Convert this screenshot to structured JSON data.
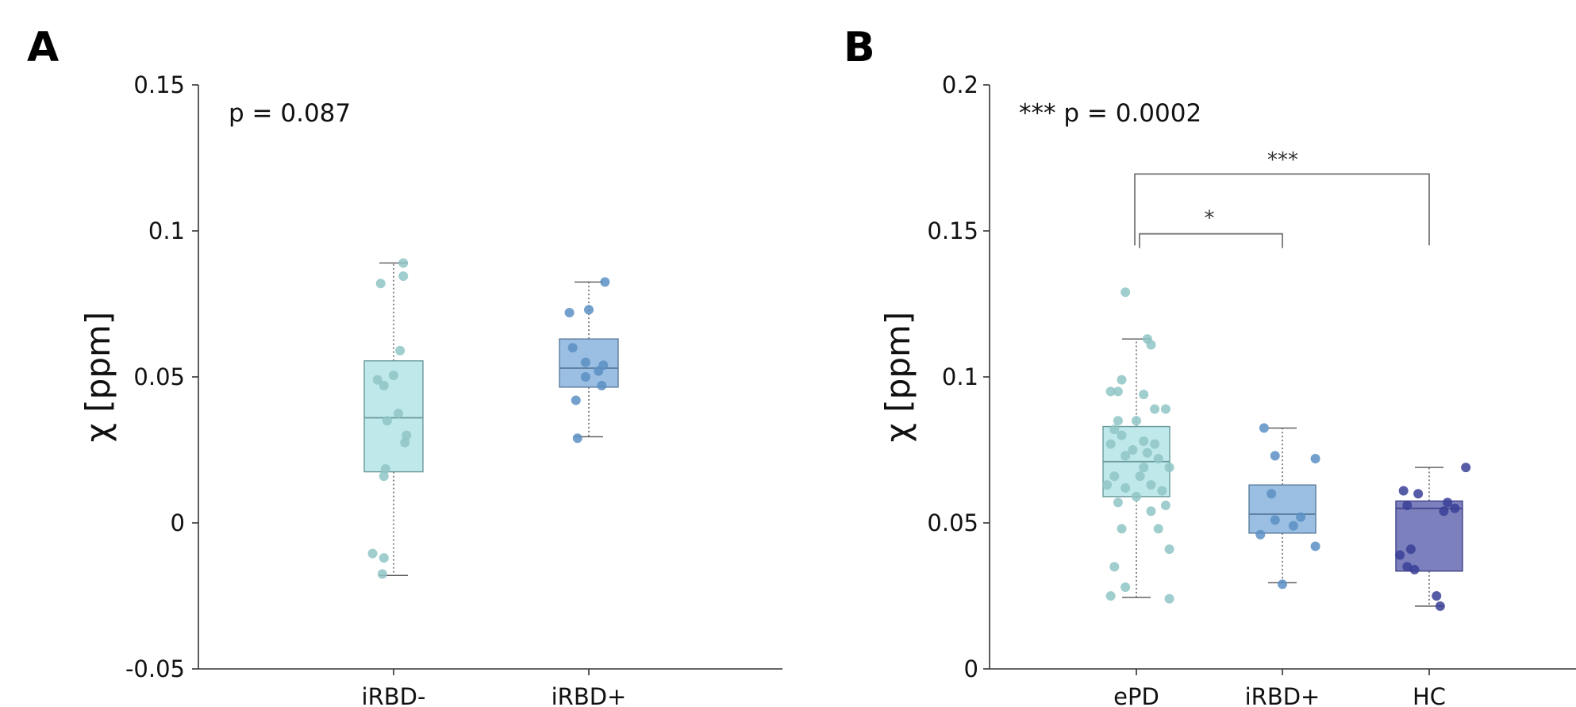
{
  "chart_data": [
    {
      "type": "box",
      "panel": "A",
      "ylabel": "χ [ppm]",
      "ylim": [
        -0.05,
        0.15
      ],
      "yticks": [
        -0.05,
        0,
        0.05,
        0.1,
        0.15
      ],
      "ytick_labels": [
        "-0.05",
        "0",
        "0.05",
        "0.1",
        "0.15"
      ],
      "annotation": "p = 0.087",
      "categories": [
        "iRBD-",
        "iRBD+"
      ],
      "boxes": [
        {
          "name": "iRBD-",
          "fill": "#bfe8ea",
          "edge": "#6a9a9c",
          "point": "#8fc4c6",
          "q1": 0.0175,
          "median": 0.036,
          "q3": 0.0555,
          "whisker_low": -0.018,
          "whisker_high": 0.089,
          "points": [
            [
              -0.04,
              0.082
            ],
            [
              0.03,
              0.089
            ],
            [
              0.03,
              0.0845
            ],
            [
              0.02,
              0.059
            ],
            [
              -0.05,
              0.049
            ],
            [
              -0.03,
              0.047
            ],
            [
              0.0,
              0.0505
            ],
            [
              0.015,
              0.0375
            ],
            [
              -0.02,
              0.035
            ],
            [
              0.04,
              0.03
            ],
            [
              0.035,
              0.0275
            ],
            [
              -0.025,
              0.0185
            ],
            [
              -0.03,
              0.016
            ],
            [
              -0.065,
              -0.0105
            ],
            [
              -0.03,
              -0.012
            ],
            [
              -0.035,
              -0.0175
            ]
          ]
        },
        {
          "name": "iRBD+",
          "fill": "#9bbfe2",
          "edge": "#5a7d9e",
          "point": "#5b8fc3",
          "q1": 0.0465,
          "median": 0.053,
          "q3": 0.063,
          "whisker_low": 0.0295,
          "whisker_high": 0.0825,
          "points": [
            [
              0.05,
              0.0825
            ],
            [
              -0.06,
              0.072
            ],
            [
              0.0,
              0.073
            ],
            [
              -0.05,
              0.06
            ],
            [
              -0.01,
              0.055
            ],
            [
              0.03,
              0.052
            ],
            [
              0.045,
              0.054
            ],
            [
              0.04,
              0.047
            ],
            [
              -0.01,
              0.05
            ],
            [
              -0.04,
              0.042
            ],
            [
              -0.035,
              0.029
            ]
          ]
        }
      ]
    },
    {
      "type": "box",
      "panel": "B",
      "ylabel": "χ [ppm]",
      "ylim": [
        0,
        0.2
      ],
      "yticks": [
        0,
        0.05,
        0.1,
        0.15,
        0.2
      ],
      "ytick_labels": [
        "0",
        "0.05",
        "0.1",
        "0.15",
        "0.2"
      ],
      "annotation": "*** p = 0.0002",
      "categories": [
        "ePD",
        "iRBD+",
        "HC"
      ],
      "boxes": [
        {
          "name": "ePD",
          "fill": "#bfe8ea",
          "edge": "#6a9a9c",
          "point": "#8fc4c6",
          "q1": 0.059,
          "median": 0.071,
          "q3": 0.083,
          "whisker_low": 0.0245,
          "whisker_high": 0.113,
          "points": [
            [
              -0.03,
              0.129
            ],
            [
              0.03,
              0.113
            ],
            [
              0.04,
              0.111
            ],
            [
              -0.04,
              0.099
            ],
            [
              -0.07,
              0.095
            ],
            [
              -0.05,
              0.095
            ],
            [
              0.02,
              0.094
            ],
            [
              0.05,
              0.089
            ],
            [
              0.08,
              0.089
            ],
            [
              -0.05,
              0.085
            ],
            [
              0.0,
              0.085
            ],
            [
              -0.06,
              0.082
            ],
            [
              -0.04,
              0.08
            ],
            [
              0.02,
              0.078
            ],
            [
              -0.07,
              0.077
            ],
            [
              0.05,
              0.077
            ],
            [
              -0.01,
              0.075
            ],
            [
              0.03,
              0.074
            ],
            [
              0.06,
              0.072
            ],
            [
              -0.03,
              0.073
            ],
            [
              0.09,
              0.069
            ],
            [
              0.02,
              0.069
            ],
            [
              -0.06,
              0.066
            ],
            [
              0.01,
              0.066
            ],
            [
              -0.08,
              0.063
            ],
            [
              0.04,
              0.063
            ],
            [
              -0.03,
              0.062
            ],
            [
              0.07,
              0.061
            ],
            [
              0.0,
              0.059
            ],
            [
              -0.05,
              0.057
            ],
            [
              0.08,
              0.056
            ],
            [
              0.04,
              0.054
            ],
            [
              -0.04,
              0.048
            ],
            [
              0.06,
              0.048
            ],
            [
              -0.06,
              0.035
            ],
            [
              0.09,
              0.041
            ],
            [
              -0.03,
              0.028
            ],
            [
              -0.07,
              0.025
            ],
            [
              0.09,
              0.024
            ]
          ]
        },
        {
          "name": "iRBD+",
          "fill": "#9bbfe2",
          "edge": "#5a7d9e",
          "point": "#5b8fc3",
          "q1": 0.0465,
          "median": 0.053,
          "q3": 0.063,
          "whisker_low": 0.0295,
          "whisker_high": 0.0825,
          "points": [
            [
              -0.05,
              0.0825
            ],
            [
              -0.02,
              0.073
            ],
            [
              0.09,
              0.072
            ],
            [
              -0.03,
              0.06
            ],
            [
              0.05,
              0.052
            ],
            [
              -0.02,
              0.051
            ],
            [
              0.03,
              0.049
            ],
            [
              -0.06,
              0.046
            ],
            [
              0.09,
              0.042
            ],
            [
              0.0,
              0.029
            ]
          ]
        },
        {
          "name": "HC",
          "fill": "#7c80bd",
          "edge": "#3e4288",
          "point": "#3a3f96",
          "q1": 0.0335,
          "median": 0.055,
          "q3": 0.0575,
          "whisker_low": 0.0215,
          "whisker_high": 0.069,
          "points": [
            [
              0.1,
              0.069
            ],
            [
              -0.07,
              0.061
            ],
            [
              -0.03,
              0.06
            ],
            [
              -0.06,
              0.056
            ],
            [
              0.04,
              0.054
            ],
            [
              0.07,
              0.055
            ],
            [
              0.05,
              0.057
            ],
            [
              -0.05,
              0.041
            ],
            [
              -0.08,
              0.039
            ],
            [
              -0.06,
              0.035
            ],
            [
              -0.04,
              0.034
            ],
            [
              0.02,
              0.025
            ],
            [
              0.03,
              0.0215
            ]
          ]
        }
      ],
      "significance": [
        {
          "from": "ePD",
          "to": "iRBD+",
          "label": "*"
        },
        {
          "from": "ePD",
          "to": "HC",
          "label": "***"
        }
      ]
    }
  ]
}
